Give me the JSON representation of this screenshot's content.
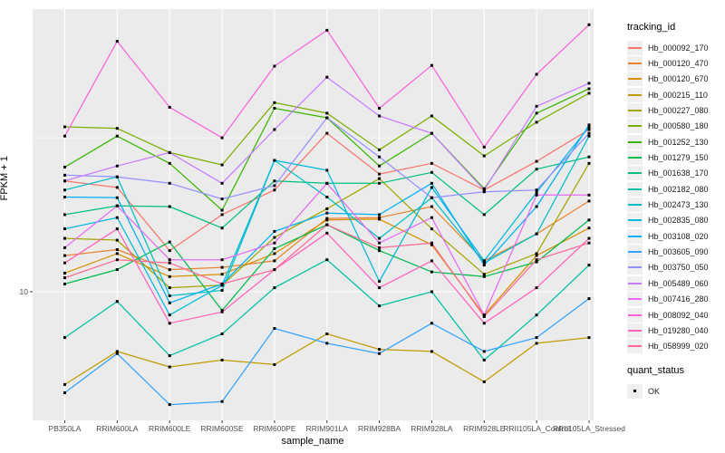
{
  "chart_data": {
    "type": "line",
    "title": "",
    "xlabel": "sample_name",
    "ylabel": "FPKM + 1",
    "y_scale": "log10",
    "y_major_break": 10,
    "y_minor_breaks": [
      31.6
    ],
    "y_tick_labels": [
      "10"
    ],
    "grid": "on",
    "panel_background": "#EBEBEB",
    "gridline_color": "#FFFFFF",
    "point_color": "#000000",
    "legend_position": "right",
    "categories": [
      "PB350LA",
      "RRIM600LA",
      "RRIM600LE",
      "RRIM600SE",
      "RRIM600PE",
      "RRIM901LA",
      "RRIM928BA",
      "RRIM928LA",
      "RRIM928LE",
      "RRII105LA_Control",
      "RRII105LA_Stressed"
    ],
    "legend": {
      "title": "tracking_id"
    },
    "quant_status": {
      "title": "quant_status",
      "items": [
        {
          "label": "OK",
          "marker": "black-square"
        }
      ]
    },
    "series": [
      {
        "name": "Hb_000092_170",
        "color": "#F8766D",
        "values": [
          22.9,
          21.8,
          13.6,
          17.8,
          21.4,
          32.7,
          24.1,
          26.1,
          21.4,
          26.5,
          33.6
        ]
      },
      {
        "name": "Hb_000120_470",
        "color": "#EA8331",
        "values": [
          13.1,
          13.7,
          11.8,
          12.0,
          12.6,
          17.3,
          17.4,
          18.9,
          12.6,
          15.4,
          19.7
        ]
      },
      {
        "name": "Hb_000120_670",
        "color": "#D89000",
        "values": [
          11.5,
          13.3,
          11.2,
          11.4,
          13.3,
          17.1,
          17.2,
          14.2,
          8.4,
          13.1,
          16.1
        ]
      },
      {
        "name": "Hb_000215_110",
        "color": "#C09B00",
        "values": [
          5.0,
          6.4,
          5.7,
          6.0,
          5.8,
          7.3,
          6.5,
          6.4,
          5.1,
          6.8,
          7.1
        ]
      },
      {
        "name": "Hb_000227_080",
        "color": "#A3A500",
        "values": [
          14.9,
          14.7,
          10.3,
          10.5,
          15.0,
          18.6,
          23.3,
          16.0,
          11.4,
          13.3,
          26.1
        ]
      },
      {
        "name": "Hb_000580_180",
        "color": "#7CAE00",
        "values": [
          34.3,
          33.9,
          28.3,
          25.8,
          41.1,
          38.0,
          28.9,
          37.2,
          27.6,
          35.5,
          44.1
        ]
      },
      {
        "name": "Hb_001252_130",
        "color": "#39B600",
        "values": [
          25.4,
          32.0,
          26.1,
          18.4,
          39.4,
          36.7,
          25.6,
          32.7,
          21.6,
          38.0,
          45.6
        ]
      },
      {
        "name": "Hb_001279_150",
        "color": "#00BB4E",
        "values": [
          10.6,
          11.8,
          14.5,
          8.7,
          13.8,
          16.5,
          13.6,
          11.6,
          11.2,
          12.5,
          17.1
        ]
      },
      {
        "name": "Hb_001638_170",
        "color": "#00BF7D",
        "values": [
          17.8,
          19.0,
          18.9,
          16.1,
          22.9,
          22.5,
          22.5,
          24.4,
          17.8,
          25.0,
          27.4
        ]
      },
      {
        "name": "Hb_002182_080",
        "color": "#00C1A3",
        "values": [
          7.1,
          9.3,
          6.2,
          7.3,
          10.3,
          12.7,
          9.0,
          10.0,
          6.0,
          8.4,
          12.2
        ]
      },
      {
        "name": "Hb_002473_130",
        "color": "#00BFC4",
        "values": [
          21.4,
          23.6,
          9.7,
          10.1,
          26.7,
          20.3,
          14.9,
          20.2,
          12.4,
          15.4,
          32.0
        ]
      },
      {
        "name": "Hb_002835_080",
        "color": "#00BAE0",
        "values": [
          16.0,
          17.4,
          8.4,
          10.5,
          26.7,
          24.8,
          10.8,
          21.8,
          12.6,
          21.0,
          34.3
        ]
      },
      {
        "name": "Hb_003108_020",
        "color": "#00B0F6",
        "values": [
          20.3,
          20.2,
          9.2,
          10.6,
          15.7,
          18.0,
          17.8,
          22.5,
          12.2,
          18.9,
          34.8
        ]
      },
      {
        "name": "Hb_003605_090",
        "color": "#35A2FF",
        "values": [
          4.7,
          6.3,
          4.3,
          4.4,
          7.6,
          6.8,
          6.3,
          7.9,
          6.4,
          7.1,
          9.5
        ]
      },
      {
        "name": "Hb_003750_050",
        "color": "#9590FF",
        "values": [
          23.9,
          23.6,
          22.5,
          20.0,
          22.1,
          36.7,
          27.4,
          20.2,
          21.1,
          21.4,
          32.7
        ]
      },
      {
        "name": "Hb_005489_060",
        "color": "#C77CFF",
        "values": [
          22.9,
          25.6,
          28.3,
          22.5,
          33.6,
          49.7,
          37.2,
          32.7,
          21.4,
          40.0,
          47.5
        ]
      },
      {
        "name": "Hb_007416_280",
        "color": "#E76BF3",
        "values": [
          13.9,
          19.0,
          12.7,
          12.7,
          14.4,
          22.5,
          14.4,
          17.4,
          8.4,
          20.6,
          20.6
        ]
      },
      {
        "name": "Hb_008092_040",
        "color": "#FA62DB",
        "values": [
          32.0,
          65.0,
          39.7,
          31.6,
          54.0,
          70.6,
          39.4,
          54.3,
          29.5,
          50.8,
          73.6
        ]
      },
      {
        "name": "Hb_019280_040",
        "color": "#FF62BC",
        "values": [
          12.4,
          16.0,
          7.9,
          8.6,
          11.8,
          15.5,
          10.3,
          12.6,
          7.9,
          10.3,
          14.9
        ]
      },
      {
        "name": "Hb_058999_020",
        "color": "#FF6A98",
        "values": [
          11.1,
          12.7,
          12.4,
          10.6,
          11.8,
          16.5,
          13.9,
          14.4,
          8.3,
          12.7,
          14.4
        ]
      }
    ]
  }
}
